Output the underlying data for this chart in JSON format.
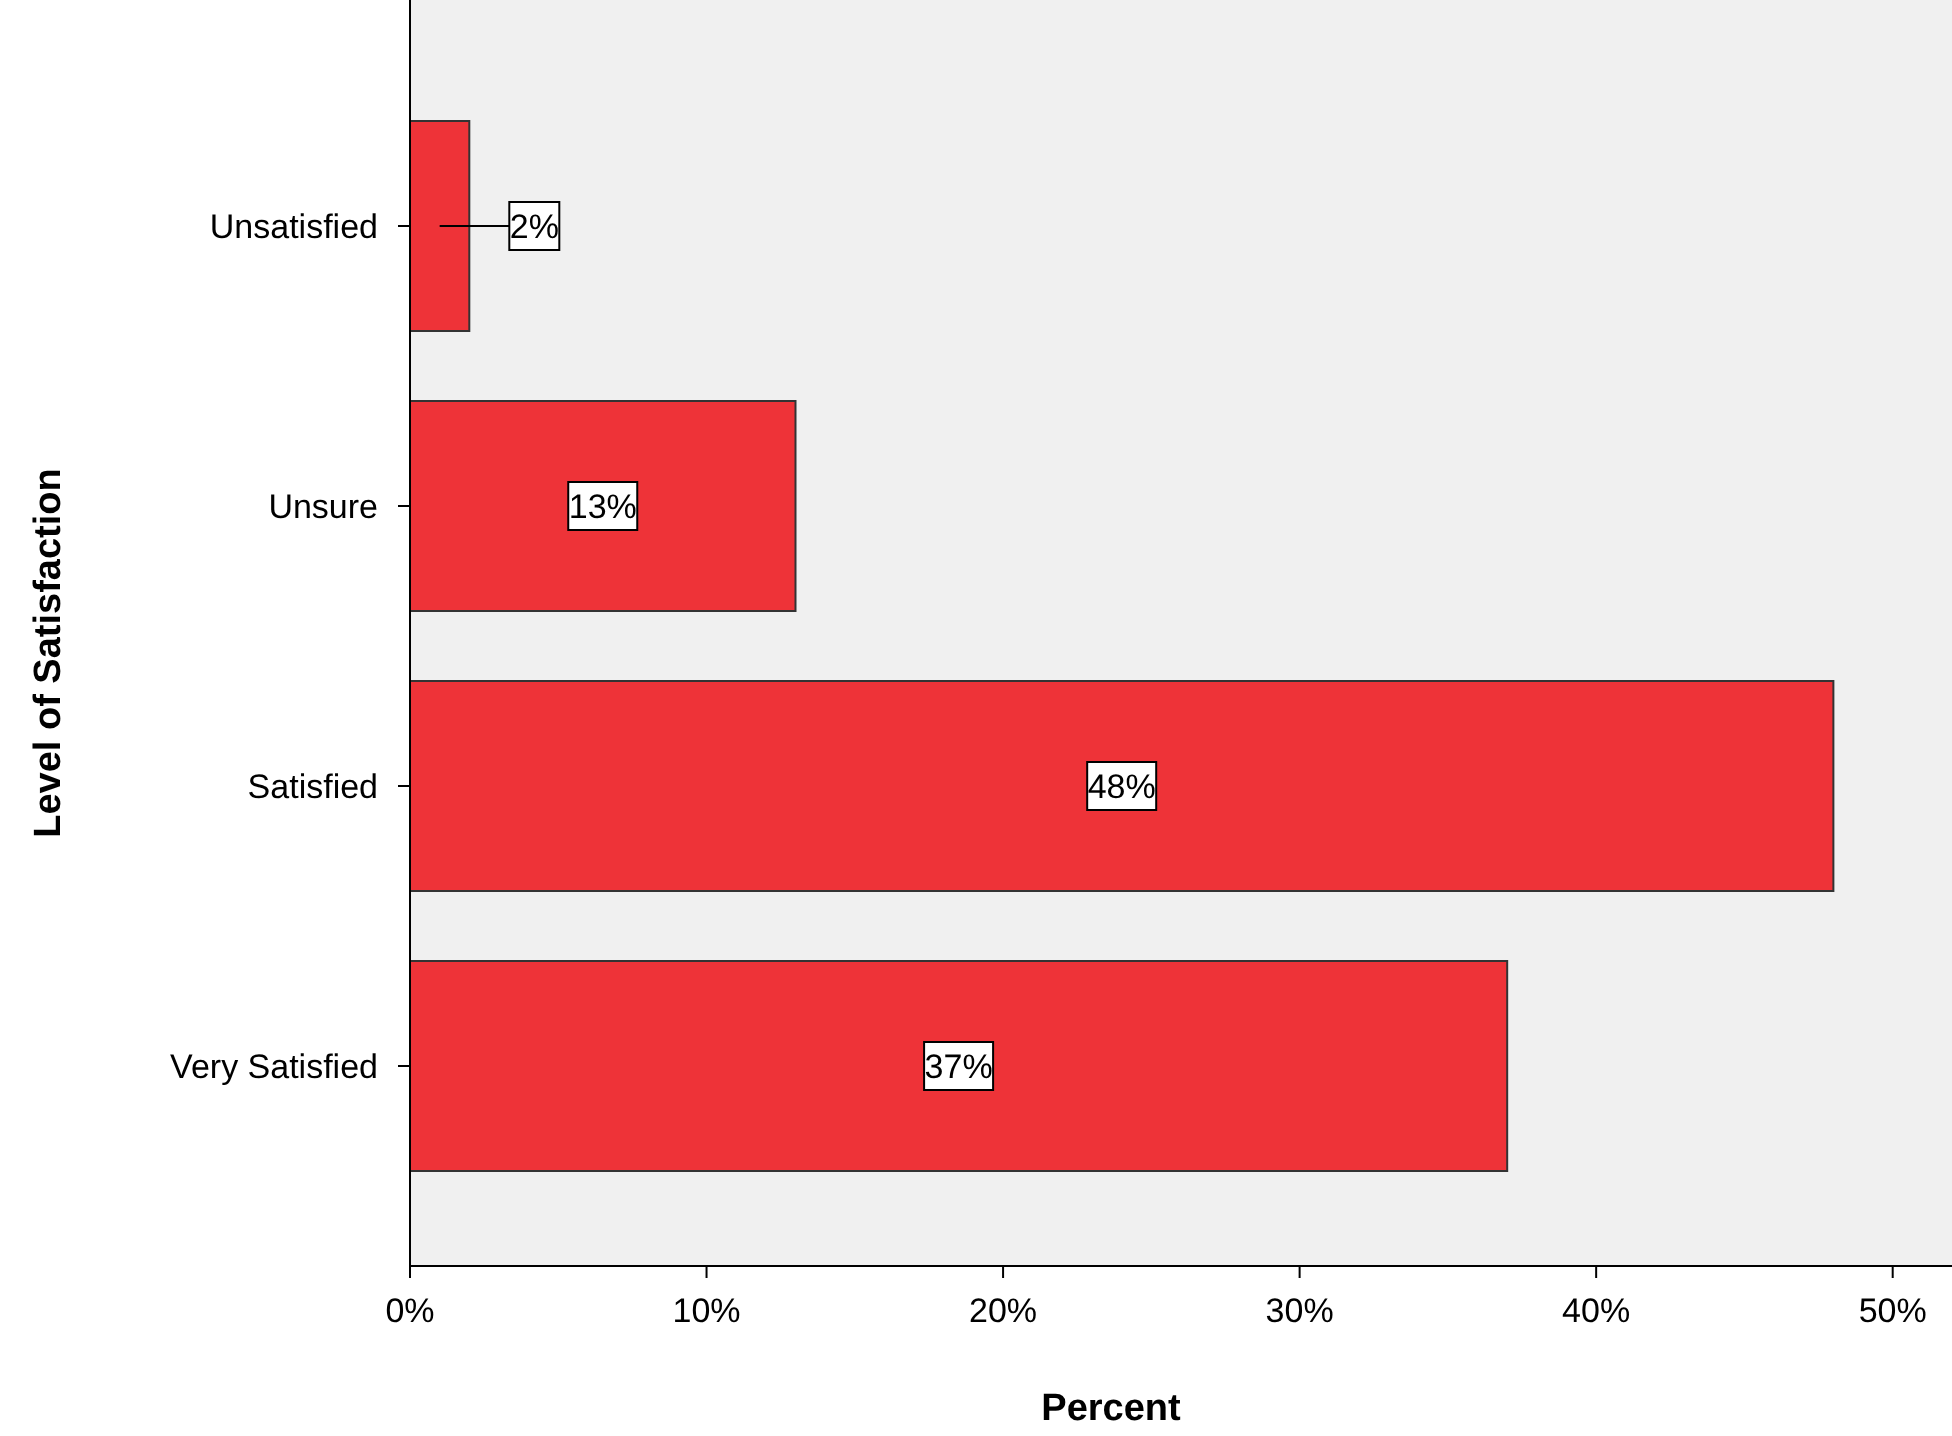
{
  "chart_data": {
    "type": "bar",
    "orientation": "horizontal",
    "xlabel": "Percent",
    "ylabel": "Level of Satisfaction",
    "categories": [
      "Unsatisfied",
      "Unsure",
      "Satisfied",
      "Very Satisfied"
    ],
    "values": [
      2,
      13,
      48,
      37
    ],
    "value_labels": [
      "2%",
      "13%",
      "48%",
      "37%"
    ],
    "color": "#ee3338",
    "grid": false,
    "xlim": [
      0,
      52
    ],
    "xticks": [
      {
        "value": 0,
        "label": "0%"
      },
      {
        "value": 10,
        "label": "10%"
      },
      {
        "value": 20,
        "label": "20%"
      },
      {
        "value": 30,
        "label": "30%"
      },
      {
        "value": 40,
        "label": "40%"
      },
      {
        "value": 50,
        "label": "50%"
      }
    ]
  }
}
